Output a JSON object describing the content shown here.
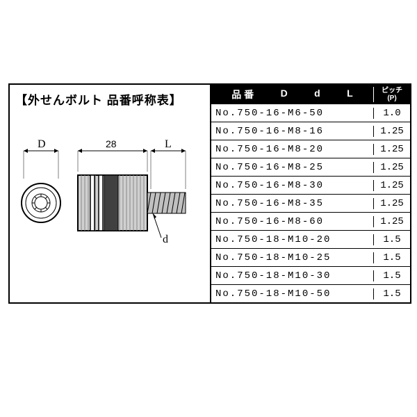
{
  "title": "【外せんボルト 品番呼称表】",
  "diagram": {
    "dim_D_label": "D",
    "dim_28_label": "28",
    "dim_L_label": "L",
    "dim_d_label": "d",
    "stroke": "#000000",
    "fill_grey": "#808080",
    "hatch_color": "#666666"
  },
  "table": {
    "header_bg": "#000000",
    "header_fg": "#ffffff",
    "header_cols": [
      "品 番",
      "D",
      "d",
      "L"
    ],
    "header_pitch_top": "ピッチ",
    "header_pitch_bottom": "(P)",
    "rows": [
      {
        "part": "No.750-16-M6-50",
        "pitch": "1.0"
      },
      {
        "part": "No.750-16-M8-16",
        "pitch": "1.25"
      },
      {
        "part": "No.750-16-M8-20",
        "pitch": "1.25"
      },
      {
        "part": "No.750-16-M8-25",
        "pitch": "1.25"
      },
      {
        "part": "No.750-16-M8-30",
        "pitch": "1.25"
      },
      {
        "part": "No.750-16-M8-35",
        "pitch": "1.25"
      },
      {
        "part": "No.750-16-M8-60",
        "pitch": "1.25"
      },
      {
        "part": "No.750-18-M10-20",
        "pitch": "1.5"
      },
      {
        "part": "No.750-18-M10-25",
        "pitch": "1.5"
      },
      {
        "part": "No.750-18-M10-30",
        "pitch": "1.5"
      },
      {
        "part": "No.750-18-M10-50",
        "pitch": "1.5"
      }
    ]
  }
}
